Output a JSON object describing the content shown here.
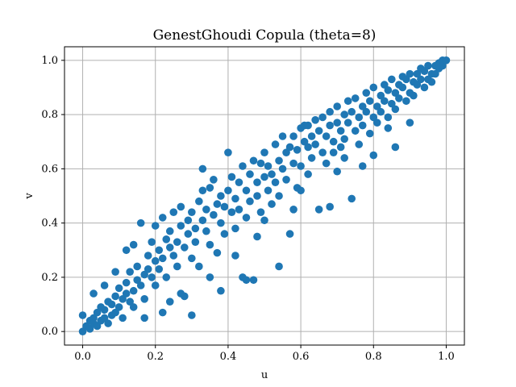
{
  "chart_data": {
    "type": "scatter",
    "title": "GenestGhoudi Copula (theta=8)",
    "xlabel": "u",
    "ylabel": "v",
    "xlim": [
      -0.05,
      1.05
    ],
    "ylim": [
      -0.05,
      1.05
    ],
    "xticks": [
      0.0,
      0.2,
      0.4,
      0.6,
      0.8,
      1.0
    ],
    "yticks": [
      0.0,
      0.2,
      0.4,
      0.6,
      0.8,
      1.0
    ],
    "xtick_labels": [
      "0.0",
      "0.2",
      "0.4",
      "0.6",
      "0.8",
      "1.0"
    ],
    "ytick_labels": [
      "0.0",
      "0.2",
      "0.4",
      "0.6",
      "0.8",
      "1.0"
    ],
    "grid": true,
    "marker_color": "#1f77b4",
    "series": [
      {
        "points": [
          [
            0.0,
            0.0
          ],
          [
            0.0,
            0.06
          ],
          [
            0.01,
            0.02
          ],
          [
            0.02,
            0.04
          ],
          [
            0.02,
            0.01
          ],
          [
            0.03,
            0.05
          ],
          [
            0.03,
            0.03
          ],
          [
            0.04,
            0.07
          ],
          [
            0.04,
            0.02
          ],
          [
            0.05,
            0.09
          ],
          [
            0.05,
            0.04
          ],
          [
            0.06,
            0.05
          ],
          [
            0.06,
            0.08
          ],
          [
            0.07,
            0.11
          ],
          [
            0.07,
            0.03
          ],
          [
            0.08,
            0.06
          ],
          [
            0.08,
            0.1
          ],
          [
            0.09,
            0.13
          ],
          [
            0.09,
            0.07
          ],
          [
            0.1,
            0.09
          ],
          [
            0.1,
            0.16
          ],
          [
            0.11,
            0.12
          ],
          [
            0.11,
            0.05
          ],
          [
            0.12,
            0.14
          ],
          [
            0.12,
            0.18
          ],
          [
            0.13,
            0.11
          ],
          [
            0.13,
            0.22
          ],
          [
            0.14,
            0.15
          ],
          [
            0.14,
            0.09
          ],
          [
            0.15,
            0.19
          ],
          [
            0.15,
            0.24
          ],
          [
            0.16,
            0.4
          ],
          [
            0.16,
            0.17
          ],
          [
            0.17,
            0.21
          ],
          [
            0.17,
            0.12
          ],
          [
            0.18,
            0.23
          ],
          [
            0.18,
            0.28
          ],
          [
            0.19,
            0.2
          ],
          [
            0.19,
            0.33
          ],
          [
            0.2,
            0.26
          ],
          [
            0.2,
            0.17
          ],
          [
            0.21,
            0.3
          ],
          [
            0.21,
            0.23
          ],
          [
            0.22,
            0.42
          ],
          [
            0.22,
            0.27
          ],
          [
            0.23,
            0.34
          ],
          [
            0.23,
            0.2
          ],
          [
            0.24,
            0.31
          ],
          [
            0.24,
            0.37
          ],
          [
            0.25,
            0.44
          ],
          [
            0.25,
            0.28
          ],
          [
            0.26,
            0.33
          ],
          [
            0.26,
            0.24
          ],
          [
            0.27,
            0.39
          ],
          [
            0.27,
            0.46
          ],
          [
            0.28,
            0.31
          ],
          [
            0.28,
            0.13
          ],
          [
            0.29,
            0.36
          ],
          [
            0.29,
            0.41
          ],
          [
            0.3,
            0.27
          ],
          [
            0.3,
            0.44
          ],
          [
            0.31,
            0.38
          ],
          [
            0.31,
            0.33
          ],
          [
            0.32,
            0.48
          ],
          [
            0.32,
            0.24
          ],
          [
            0.33,
            0.41
          ],
          [
            0.33,
            0.52
          ],
          [
            0.34,
            0.37
          ],
          [
            0.34,
            0.45
          ],
          [
            0.35,
            0.53
          ],
          [
            0.35,
            0.32
          ],
          [
            0.36,
            0.43
          ],
          [
            0.36,
            0.56
          ],
          [
            0.37,
            0.47
          ],
          [
            0.37,
            0.29
          ],
          [
            0.38,
            0.5
          ],
          [
            0.38,
            0.4
          ],
          [
            0.39,
            0.46
          ],
          [
            0.39,
            0.36
          ],
          [
            0.4,
            0.66
          ],
          [
            0.4,
            0.52
          ],
          [
            0.41,
            0.44
          ],
          [
            0.41,
            0.57
          ],
          [
            0.42,
            0.49
          ],
          [
            0.42,
            0.38
          ],
          [
            0.43,
            0.55
          ],
          [
            0.43,
            0.45
          ],
          [
            0.44,
            0.61
          ],
          [
            0.44,
            0.2
          ],
          [
            0.45,
            0.52
          ],
          [
            0.45,
            0.42
          ],
          [
            0.46,
            0.58
          ],
          [
            0.46,
            0.48
          ],
          [
            0.47,
            0.63
          ],
          [
            0.47,
            0.19
          ],
          [
            0.48,
            0.55
          ],
          [
            0.48,
            0.5
          ],
          [
            0.49,
            0.62
          ],
          [
            0.49,
            0.44
          ],
          [
            0.5,
            0.57
          ],
          [
            0.5,
            0.66
          ],
          [
            0.51,
            0.52
          ],
          [
            0.51,
            0.61
          ],
          [
            0.52,
            0.47
          ],
          [
            0.52,
            0.58
          ],
          [
            0.53,
            0.69
          ],
          [
            0.53,
            0.55
          ],
          [
            0.54,
            0.63
          ],
          [
            0.54,
            0.5
          ],
          [
            0.55,
            0.72
          ],
          [
            0.55,
            0.6
          ],
          [
            0.56,
            0.66
          ],
          [
            0.56,
            0.56
          ],
          [
            0.57,
            0.36
          ],
          [
            0.57,
            0.68
          ],
          [
            0.58,
            0.62
          ],
          [
            0.58,
            0.72
          ],
          [
            0.59,
            0.53
          ],
          [
            0.59,
            0.67
          ],
          [
            0.6,
            0.75
          ],
          [
            0.6,
            0.61
          ],
          [
            0.61,
            0.7
          ],
          [
            0.61,
            0.76
          ],
          [
            0.62,
            0.58
          ],
          [
            0.62,
            0.68
          ],
          [
            0.63,
            0.72
          ],
          [
            0.63,
            0.64
          ],
          [
            0.64,
            0.78
          ],
          [
            0.64,
            0.69
          ],
          [
            0.65,
            0.45
          ],
          [
            0.65,
            0.74
          ],
          [
            0.66,
            0.66
          ],
          [
            0.66,
            0.79
          ],
          [
            0.67,
            0.72
          ],
          [
            0.67,
            0.62
          ],
          [
            0.68,
            0.76
          ],
          [
            0.68,
            0.81
          ],
          [
            0.69,
            0.7
          ],
          [
            0.69,
            0.66
          ],
          [
            0.7,
            0.77
          ],
          [
            0.7,
            0.83
          ],
          [
            0.71,
            0.74
          ],
          [
            0.71,
            0.68
          ],
          [
            0.72,
            0.8
          ],
          [
            0.72,
            0.71
          ],
          [
            0.73,
            0.85
          ],
          [
            0.73,
            0.77
          ],
          [
            0.74,
            0.49
          ],
          [
            0.74,
            0.81
          ],
          [
            0.75,
            0.74
          ],
          [
            0.75,
            0.86
          ],
          [
            0.76,
            0.79
          ],
          [
            0.76,
            0.69
          ],
          [
            0.77,
            0.83
          ],
          [
            0.77,
            0.76
          ],
          [
            0.78,
            0.88
          ],
          [
            0.78,
            0.81
          ],
          [
            0.79,
            0.73
          ],
          [
            0.79,
            0.85
          ],
          [
            0.8,
            0.79
          ],
          [
            0.8,
            0.9
          ],
          [
            0.81,
            0.83
          ],
          [
            0.81,
            0.77
          ],
          [
            0.82,
            0.87
          ],
          [
            0.82,
            0.81
          ],
          [
            0.83,
            0.91
          ],
          [
            0.83,
            0.85
          ],
          [
            0.84,
            0.79
          ],
          [
            0.84,
            0.89
          ],
          [
            0.85,
            0.84
          ],
          [
            0.85,
            0.93
          ],
          [
            0.86,
            0.88
          ],
          [
            0.86,
            0.82
          ],
          [
            0.87,
            0.91
          ],
          [
            0.87,
            0.86
          ],
          [
            0.88,
            0.94
          ],
          [
            0.88,
            0.9
          ],
          [
            0.89,
            0.85
          ],
          [
            0.89,
            0.93
          ],
          [
            0.9,
            0.88
          ],
          [
            0.9,
            0.95
          ],
          [
            0.91,
            0.92
          ],
          [
            0.91,
            0.87
          ],
          [
            0.92,
            0.95
          ],
          [
            0.92,
            0.91
          ],
          [
            0.93,
            0.97
          ],
          [
            0.93,
            0.93
          ],
          [
            0.94,
            0.9
          ],
          [
            0.94,
            0.96
          ],
          [
            0.95,
            0.93
          ],
          [
            0.95,
            0.98
          ],
          [
            0.96,
            0.95
          ],
          [
            0.96,
            0.92
          ],
          [
            0.97,
            0.98
          ],
          [
            0.97,
            0.95
          ],
          [
            0.98,
            0.99
          ],
          [
            0.98,
            0.97
          ],
          [
            0.99,
            0.98
          ],
          [
            0.99,
            1.0
          ],
          [
            1.0,
            1.0
          ],
          [
            0.14,
            0.32
          ],
          [
            0.22,
            0.07
          ],
          [
            0.3,
            0.06
          ],
          [
            0.27,
            0.14
          ],
          [
            0.48,
            0.35
          ],
          [
            0.45,
            0.19
          ],
          [
            0.54,
            0.24
          ],
          [
            0.5,
            0.41
          ],
          [
            0.62,
            0.76
          ],
          [
            0.68,
            0.46
          ],
          [
            0.86,
            0.68
          ],
          [
            0.84,
            0.75
          ],
          [
            0.77,
            0.61
          ],
          [
            0.09,
            0.22
          ],
          [
            0.12,
            0.3
          ],
          [
            0.2,
            0.39
          ],
          [
            0.33,
            0.6
          ],
          [
            0.38,
            0.15
          ],
          [
            0.42,
            0.28
          ],
          [
            0.58,
            0.45
          ],
          [
            0.72,
            0.64
          ],
          [
            0.9,
            0.77
          ],
          [
            0.06,
            0.17
          ],
          [
            0.03,
            0.14
          ],
          [
            0.17,
            0.05
          ],
          [
            0.24,
            0.11
          ],
          [
            0.35,
            0.2
          ],
          [
            0.6,
            0.52
          ],
          [
            0.7,
            0.59
          ],
          [
            0.8,
            0.65
          ]
        ]
      }
    ]
  }
}
